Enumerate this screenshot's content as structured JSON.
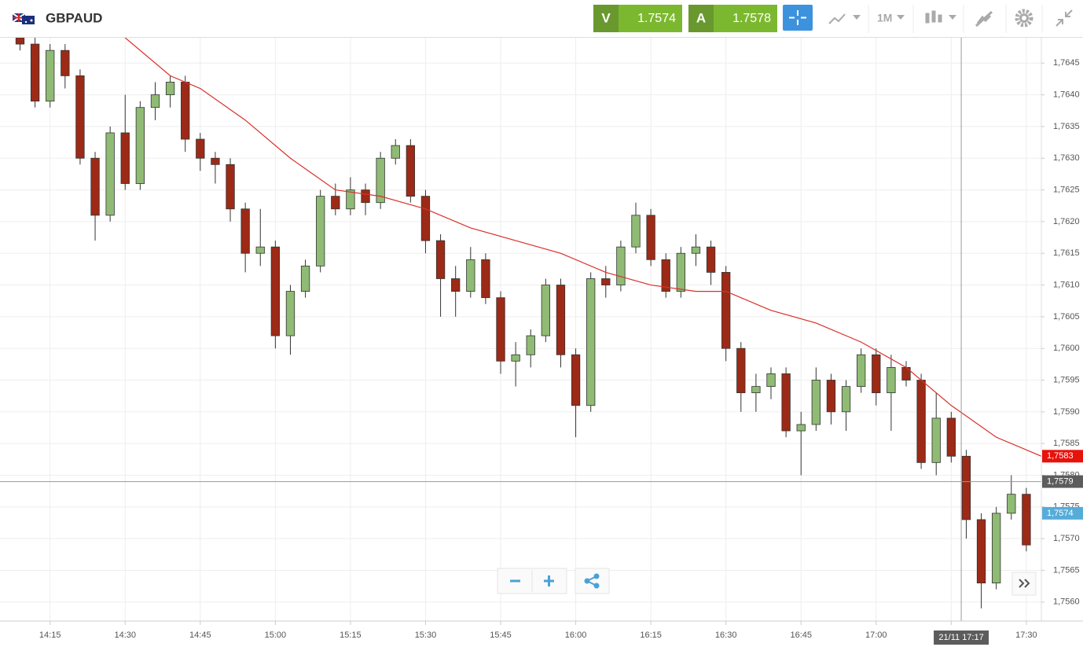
{
  "header": {
    "symbol": "GBPAUD",
    "sell_label": "V",
    "sell_price": "1.7574",
    "buy_label": "A",
    "buy_price": "1.7578",
    "timeframe": "1M"
  },
  "chart_data": {
    "type": "candlestick",
    "x": [
      "14:09",
      "14:12",
      "14:15",
      "14:18",
      "14:21",
      "14:24",
      "14:27",
      "14:30",
      "14:33",
      "14:36",
      "14:39",
      "14:42",
      "14:45",
      "14:48",
      "14:51",
      "14:54",
      "14:57",
      "15:00",
      "15:03",
      "15:06",
      "15:09",
      "15:12",
      "15:15",
      "15:18",
      "15:21",
      "15:24",
      "15:27",
      "15:30",
      "15:33",
      "15:36",
      "15:39",
      "15:42",
      "15:45",
      "15:48",
      "15:51",
      "15:54",
      "15:57",
      "16:00",
      "16:03",
      "16:06",
      "16:09",
      "16:12",
      "16:15",
      "16:18",
      "16:21",
      "16:24",
      "16:27",
      "16:30",
      "16:33",
      "16:36",
      "16:39",
      "16:42",
      "16:45",
      "16:48",
      "16:51",
      "16:54",
      "16:57",
      "17:00",
      "17:03",
      "17:06",
      "17:09",
      "17:12",
      "17:15",
      "17:18",
      "17:21",
      "17:24",
      "17:27",
      "17:30"
    ],
    "open": [
      1.7649,
      1.7648,
      1.7639,
      1.7647,
      1.7643,
      1.763,
      1.7621,
      1.7634,
      1.7626,
      1.7638,
      1.764,
      1.7642,
      1.7633,
      1.763,
      1.7629,
      1.7622,
      1.7615,
      1.7616,
      1.7602,
      1.7609,
      1.7613,
      1.7624,
      1.7622,
      1.7625,
      1.7623,
      1.763,
      1.7632,
      1.7624,
      1.7617,
      1.7611,
      1.7609,
      1.7614,
      1.7608,
      1.7598,
      1.7599,
      1.7602,
      1.761,
      1.7599,
      1.7591,
      1.7611,
      1.761,
      1.7616,
      1.7621,
      1.7614,
      1.7609,
      1.7615,
      1.7616,
      1.7612,
      1.76,
      1.7593,
      1.7594,
      1.7596,
      1.7587,
      1.7588,
      1.7595,
      1.759,
      1.7594,
      1.7599,
      1.7593,
      1.7597,
      1.7595,
      1.7582,
      1.7589,
      1.7583,
      1.7573,
      1.7563,
      1.7574,
      1.7577
    ],
    "high": [
      1.765,
      1.7649,
      1.7648,
      1.7648,
      1.7644,
      1.7631,
      1.7635,
      1.764,
      1.7639,
      1.7642,
      1.7643,
      1.7643,
      1.7634,
      1.7631,
      1.763,
      1.7623,
      1.7622,
      1.7617,
      1.761,
      1.7614,
      1.7625,
      1.7626,
      1.7627,
      1.7626,
      1.7631,
      1.7633,
      1.7633,
      1.7625,
      1.7618,
      1.7613,
      1.7616,
      1.7615,
      1.7609,
      1.7601,
      1.7603,
      1.7611,
      1.7611,
      1.76,
      1.7612,
      1.7613,
      1.7617,
      1.7623,
      1.7622,
      1.7615,
      1.7616,
      1.7618,
      1.7617,
      1.7613,
      1.7601,
      1.7596,
      1.7597,
      1.7597,
      1.759,
      1.7597,
      1.7596,
      1.7595,
      1.76,
      1.76,
      1.7599,
      1.7598,
      1.7596,
      1.7593,
      1.759,
      1.7584,
      1.7574,
      1.7575,
      1.758,
      1.7578
    ],
    "low": [
      1.7647,
      1.7638,
      1.7638,
      1.7641,
      1.7629,
      1.7617,
      1.762,
      1.7625,
      1.7625,
      1.7636,
      1.7638,
      1.7631,
      1.7628,
      1.7626,
      1.762,
      1.7612,
      1.7613,
      1.76,
      1.7599,
      1.7608,
      1.7612,
      1.7621,
      1.7621,
      1.7621,
      1.7622,
      1.7629,
      1.7623,
      1.7615,
      1.7605,
      1.7605,
      1.7608,
      1.7607,
      1.7596,
      1.7594,
      1.7597,
      1.7601,
      1.7597,
      1.7586,
      1.759,
      1.7608,
      1.7609,
      1.7615,
      1.7613,
      1.7608,
      1.7608,
      1.7613,
      1.761,
      1.7598,
      1.759,
      1.759,
      1.7592,
      1.7586,
      1.758,
      1.7587,
      1.7588,
      1.7587,
      1.7593,
      1.7591,
      1.7587,
      1.7594,
      1.7581,
      1.758,
      1.7582,
      1.757,
      1.7559,
      1.7562,
      1.7573,
      1.7568
    ],
    "close": [
      1.7648,
      1.7639,
      1.7647,
      1.7643,
      1.763,
      1.7621,
      1.7634,
      1.7626,
      1.7638,
      1.764,
      1.7642,
      1.7633,
      1.763,
      1.7629,
      1.7622,
      1.7615,
      1.7616,
      1.7602,
      1.7609,
      1.7613,
      1.7624,
      1.7622,
      1.7625,
      1.7623,
      1.763,
      1.7632,
      1.7624,
      1.7617,
      1.7611,
      1.7609,
      1.7614,
      1.7608,
      1.7598,
      1.7599,
      1.7602,
      1.761,
      1.7599,
      1.7591,
      1.7611,
      1.761,
      1.7616,
      1.7621,
      1.7614,
      1.7609,
      1.7615,
      1.7616,
      1.7612,
      1.76,
      1.7593,
      1.7594,
      1.7596,
      1.7587,
      1.7588,
      1.7595,
      1.759,
      1.7594,
      1.7599,
      1.7593,
      1.7597,
      1.7595,
      1.7582,
      1.7589,
      1.7583,
      1.7573,
      1.7563,
      1.7574,
      1.7577,
      1.7569
    ],
    "up_color": "#8fbb74",
    "down_color": "#9c2a17",
    "ma": {
      "color": "#d9302a",
      "x": [
        "14:30",
        "14:39",
        "14:45",
        "14:54",
        "15:03",
        "15:12",
        "15:21",
        "15:30",
        "15:39",
        "15:48",
        "15:57",
        "16:06",
        "16:15",
        "16:24",
        "16:30",
        "16:39",
        "16:48",
        "16:57",
        "17:06",
        "17:15",
        "17:24",
        "17:33"
      ],
      "values": [
        1.7649,
        1.7643,
        1.7641,
        1.7636,
        1.763,
        1.7625,
        1.7624,
        1.7622,
        1.7619,
        1.7617,
        1.7615,
        1.7612,
        1.761,
        1.7609,
        1.7609,
        1.7606,
        1.7604,
        1.7601,
        1.7597,
        1.7591,
        1.7586,
        1.7583
      ]
    },
    "xlim": [
      "14:05",
      "17:33"
    ],
    "xticks": [
      "14:15",
      "14:30",
      "14:45",
      "15:00",
      "15:15",
      "15:30",
      "15:45",
      "16:00",
      "16:15",
      "16:30",
      "16:45",
      "17:00",
      "17:15",
      "17:30"
    ],
    "ylim": [
      1.7557,
      1.7649
    ],
    "yticks": [
      {
        "value": 1.756,
        "label": "1,7560"
      },
      {
        "value": 1.7565,
        "label": "1,7565"
      },
      {
        "value": 1.757,
        "label": "1,7570"
      },
      {
        "value": 1.7575,
        "label": "1,7575"
      },
      {
        "value": 1.758,
        "label": "1,7580"
      },
      {
        "value": 1.7585,
        "label": "1,7585"
      },
      {
        "value": 1.759,
        "label": "1,7590"
      },
      {
        "value": 1.7595,
        "label": "1,7595"
      },
      {
        "value": 1.76,
        "label": "1,7600"
      },
      {
        "value": 1.7605,
        "label": "1,7605"
      },
      {
        "value": 1.761,
        "label": "1,7610"
      },
      {
        "value": 1.7615,
        "label": "1,7615"
      },
      {
        "value": 1.762,
        "label": "1,7620"
      },
      {
        "value": 1.7625,
        "label": "1,7625"
      },
      {
        "value": 1.763,
        "label": "1,7630"
      },
      {
        "value": 1.7635,
        "label": "1,7635"
      },
      {
        "value": 1.764,
        "label": "1,7640"
      },
      {
        "value": 1.7645,
        "label": "1,7645"
      }
    ],
    "grid": true,
    "price_labels": [
      {
        "value": 1.7583,
        "label": "1,7583",
        "color": "#e8120c"
      },
      {
        "value": 1.7574,
        "label": "1,7574",
        "color": "#56acd9"
      }
    ],
    "crosshair": {
      "x": "17:17",
      "x_label": "21/11 17:17",
      "y": 1.7579,
      "y_label": "1,7579"
    }
  }
}
